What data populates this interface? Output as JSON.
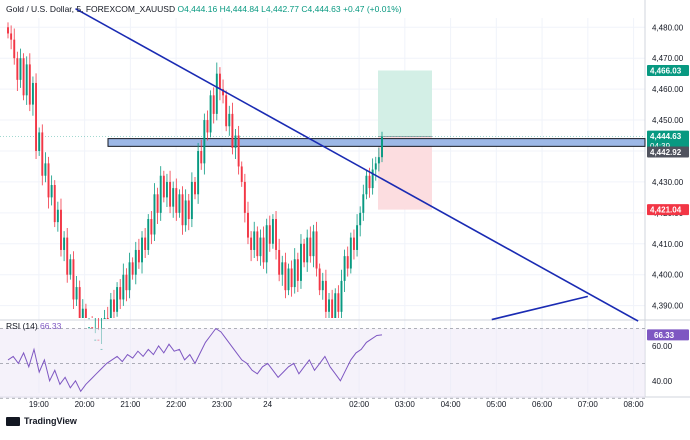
{
  "header": {
    "symbol": "Gold / U.S. Dollar, 5, FOREXCOM_XAUUSD",
    "open": "O4,444.16",
    "high": "H4,444.84",
    "low": "L4,442.77",
    "close": "C4,444.63",
    "change": "+0.47 (+0.01%)"
  },
  "rsi_header": {
    "label": "RSI (14)",
    "value": "66.33"
  },
  "footer": {
    "brand": "TradingView"
  },
  "colors": {
    "up": "#089981",
    "down": "#f23645",
    "trendline": "#1a2bb3",
    "zone_fill": "#9db8e6",
    "rsi": "#7e57c2",
    "profit_zone": "#d3efe6",
    "loss_zone": "#fcdde0"
  },
  "chart_data": [
    {
      "type": "candlestick",
      "symbol": "XAUUSD",
      "timeframe": "5",
      "y_ticks": [
        4390,
        4400,
        4410,
        4420,
        4430,
        4440,
        4450,
        4460,
        4470,
        4480
      ],
      "y_tick_labels": [
        "4,390.00",
        "4,400.00",
        "4,410.00",
        "4,420.00",
        "4,430.00",
        "4,440.00",
        "4,450.00",
        "4,460.00",
        "4,470.00",
        "4,480.00"
      ],
      "ylim": [
        4386,
        4483
      ],
      "x_tick_labels": [
        "19:00",
        "20:00",
        "21:00",
        "22:00",
        "23:00",
        "24",
        "02:00",
        "03:00",
        "04:00",
        "05:00",
        "06:00",
        "07:00",
        "08:00"
      ],
      "x_tick_hours": [
        19,
        20,
        21,
        22,
        23,
        24,
        26,
        27,
        28,
        29,
        30,
        31,
        32
      ],
      "x_start_hour": 18.15,
      "x_end_hour": 32.25,
      "closes": [
        4478,
        4476,
        4470,
        4463,
        4470,
        4458,
        4468,
        4455,
        4462,
        4440,
        4446,
        4432,
        4436,
        4425,
        4429,
        4417,
        4421,
        4408,
        4412,
        4400,
        4405,
        4392,
        4396,
        4385,
        4389,
        4380,
        4383,
        4376,
        4379,
        4372,
        4376,
        4386,
        4382,
        4392,
        4388,
        4396,
        4392,
        4400,
        4395,
        4404,
        4400,
        4408,
        4404,
        4412,
        4408,
        4418,
        4413,
        4426,
        4420,
        4432,
        4425,
        4430,
        4422,
        4428,
        4420,
        4426,
        4416,
        4424,
        4418,
        4430,
        4426,
        4440,
        4436,
        4450,
        4446,
        4458,
        4452,
        4465,
        4460,
        4458,
        4448,
        4452,
        4441,
        4445,
        4435,
        4430,
        4420,
        4412,
        4408,
        4414,
        4406,
        4412,
        4404,
        4416,
        4410,
        4418,
        4408,
        4400,
        4404,
        4395,
        4402,
        4396,
        4405,
        4398,
        4410,
        4404,
        4412,
        4406,
        4414,
        4402,
        4395,
        4398,
        4388,
        4392,
        4382,
        4394,
        4388,
        4398,
        4406,
        4402,
        4412,
        4408,
        4416,
        4420,
        4426,
        4432,
        4428,
        4434,
        4436,
        4438,
        4444.63
      ],
      "current_price": "4,444.63",
      "countdown": "04:39",
      "zone_price": "4,442.92",
      "zone_range": [
        4441.5,
        4444.0
      ],
      "position": {
        "entry": 4444.63,
        "target": 4466.03,
        "stop": 4421.04,
        "target_label": "4,466.03",
        "stop_label": "4,421.04"
      },
      "trendline_down": {
        "from": [
          19.8,
          4486
        ],
        "to": [
          32.1,
          4385
        ]
      },
      "trendline_up": {
        "from": [
          28.9,
          4385.5
        ],
        "to": [
          31.0,
          4393
        ]
      }
    },
    {
      "type": "line",
      "name": "RSI (14)",
      "y_ticks": [
        40,
        60
      ],
      "ylim": [
        33,
        72
      ],
      "levels": [
        70,
        50,
        30
      ],
      "last": 66.33,
      "values": [
        52,
        54,
        50,
        56,
        48,
        58,
        45,
        52,
        40,
        46,
        38,
        42,
        36,
        40,
        34,
        38,
        41,
        44,
        47,
        50,
        52,
        54,
        51,
        55,
        53,
        57,
        54,
        58,
        55,
        60,
        56,
        61,
        57,
        58,
        52,
        55,
        50,
        56,
        62,
        66,
        70,
        68,
        64,
        60,
        56,
        52,
        50,
        46,
        44,
        48,
        50,
        46,
        42,
        45,
        48,
        50,
        44,
        48,
        52,
        46,
        50,
        54,
        48,
        44,
        40,
        46,
        52,
        56,
        58,
        62,
        64,
        66,
        66.33
      ]
    }
  ]
}
